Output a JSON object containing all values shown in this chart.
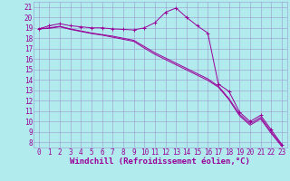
{
  "bg_color": "#b2ebee",
  "grid_color": "#9999cc",
  "line_color": "#990099",
  "xlabel": "Windchill (Refroidissement éolien,°C)",
  "xlabel_color": "#990099",
  "ylabel_ticks": [
    8,
    9,
    10,
    11,
    12,
    13,
    14,
    15,
    16,
    17,
    18,
    19,
    20,
    21
  ],
  "xlim": [
    -0.5,
    23.5
  ],
  "ylim": [
    7.5,
    21.5
  ],
  "xticks": [
    0,
    1,
    2,
    3,
    4,
    5,
    6,
    7,
    8,
    9,
    10,
    11,
    12,
    13,
    14,
    15,
    16,
    17,
    18,
    19,
    20,
    21,
    22,
    23
  ],
  "line1_x": [
    0,
    1,
    2,
    3,
    4,
    5,
    6,
    7,
    8,
    9,
    10,
    11,
    12,
    13,
    14,
    15,
    16,
    17,
    18,
    19,
    20,
    21,
    22,
    23
  ],
  "line1_y": [
    18.9,
    19.2,
    19.4,
    19.2,
    19.1,
    19.0,
    19.0,
    18.9,
    18.85,
    18.8,
    19.0,
    19.5,
    20.5,
    20.9,
    20.0,
    19.2,
    18.5,
    13.6,
    12.9,
    10.9,
    10.0,
    10.6,
    9.2,
    7.8
  ],
  "line2_x": [
    0,
    1,
    2,
    3,
    4,
    5,
    6,
    7,
    8,
    9,
    10,
    11,
    12,
    13,
    14,
    15,
    16,
    17,
    18,
    19,
    20,
    21,
    22,
    23
  ],
  "line2_y": [
    18.9,
    19.0,
    19.15,
    18.9,
    18.7,
    18.5,
    18.35,
    18.2,
    18.0,
    17.8,
    17.2,
    16.6,
    16.1,
    15.6,
    15.1,
    14.6,
    14.1,
    13.4,
    12.2,
    10.7,
    9.8,
    10.4,
    9.0,
    7.7
  ],
  "line3_x": [
    0,
    1,
    2,
    3,
    4,
    5,
    6,
    7,
    8,
    9,
    10,
    11,
    12,
    13,
    14,
    15,
    16,
    17,
    18,
    19,
    20,
    21,
    22,
    23
  ],
  "line3_y": [
    18.9,
    18.95,
    19.1,
    18.85,
    18.65,
    18.45,
    18.3,
    18.1,
    17.9,
    17.7,
    17.05,
    16.45,
    15.95,
    15.45,
    14.95,
    14.45,
    13.95,
    13.3,
    12.1,
    10.55,
    9.65,
    10.25,
    8.85,
    7.6
  ],
  "tick_fontsize": 5.5,
  "xlabel_fontsize": 6.5
}
